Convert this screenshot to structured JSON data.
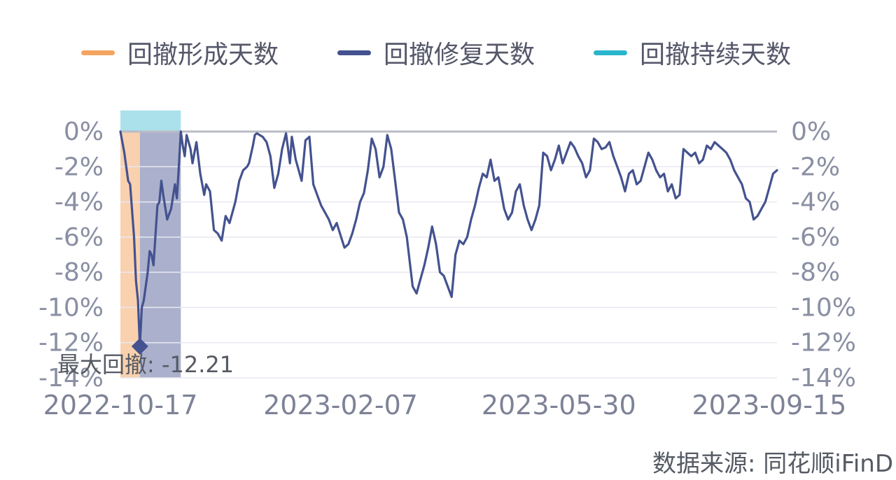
{
  "legend": {
    "formation": {
      "label": "回撤形成天数",
      "color": "#f4a460"
    },
    "repair": {
      "label": "回撤修复天数",
      "color": "#44528f"
    },
    "duration": {
      "label": "回撤持续天数",
      "color": "#2ab5cc"
    }
  },
  "source": "数据来源: 同花顺iFinD",
  "annotation": {
    "text": "最大回撤: -12.21",
    "value": -12.21,
    "date": "2022-10-27"
  },
  "chart_data": {
    "type": "line",
    "title": "",
    "y_axis": {
      "unit": "%",
      "ylim": [
        -14,
        0
      ],
      "ticks": [
        "0%",
        "-2%",
        "-4%",
        "-6%",
        "-8%",
        "-10%",
        "-12%",
        "-14%"
      ],
      "left_and_right": true
    },
    "x_axis": {
      "range": [
        "2022-10-17",
        "2023-09-19"
      ],
      "ticks": [
        "2022-10-17",
        "2023-02-07",
        "2023-05-30",
        "2023-09-15"
      ]
    },
    "grid": true,
    "legend_position": "top",
    "shaded_regions": [
      {
        "name": "回撤形成天数",
        "start": "2022-10-17",
        "end": "2022-10-27",
        "ymin": -14,
        "ymax": 0,
        "color": "#f4a460"
      },
      {
        "name": "回撤修复天数",
        "start": "2022-10-27",
        "end": "2022-11-17",
        "ymin": -14,
        "ymax": 0,
        "color": "#44528f"
      },
      {
        "name": "回撤持续天数",
        "start": "2022-10-17",
        "end": "2022-11-17",
        "ymin": 0,
        "ymax": 1.2,
        "color": "#2ab5cc"
      }
    ],
    "series": [
      {
        "color": "#44528f",
        "points": [
          [
            "2022-10-17",
            0.0
          ],
          [
            "2022-10-19",
            -1.2
          ],
          [
            "2022-10-21",
            -2.8
          ],
          [
            "2022-10-22",
            -3.0
          ],
          [
            "2022-10-24",
            -6.0
          ],
          [
            "2022-10-25",
            -8.5
          ],
          [
            "2022-10-26",
            -9.6
          ],
          [
            "2022-10-27",
            -12.21
          ],
          [
            "2022-10-28",
            -10.0
          ],
          [
            "2022-10-29",
            -9.6
          ],
          [
            "2022-10-31",
            -8.0
          ],
          [
            "2022-11-01",
            -6.8
          ],
          [
            "2022-11-02",
            -7.0
          ],
          [
            "2022-11-03",
            -7.6
          ],
          [
            "2022-11-05",
            -4.2
          ],
          [
            "2022-11-06",
            -4.0
          ],
          [
            "2022-11-07",
            -2.8
          ],
          [
            "2022-11-08",
            -3.6
          ],
          [
            "2022-11-10",
            -5.0
          ],
          [
            "2022-11-12",
            -4.4
          ],
          [
            "2022-11-14",
            -3.0
          ],
          [
            "2022-11-15",
            -3.8
          ],
          [
            "2022-11-16",
            -2.0
          ],
          [
            "2022-11-17",
            0.0
          ],
          [
            "2022-11-18",
            -0.8
          ],
          [
            "2022-11-19",
            -1.4
          ],
          [
            "2022-11-20",
            -0.2
          ],
          [
            "2022-11-22",
            -1.0
          ],
          [
            "2022-11-23",
            -1.8
          ],
          [
            "2022-11-25",
            -0.6
          ],
          [
            "2022-11-27",
            -2.4
          ],
          [
            "2022-11-29",
            -3.6
          ],
          [
            "2022-11-30",
            -3.0
          ],
          [
            "2022-12-02",
            -3.4
          ],
          [
            "2022-12-04",
            -5.6
          ],
          [
            "2022-12-06",
            -5.8
          ],
          [
            "2022-12-08",
            -6.2
          ],
          [
            "2022-12-10",
            -4.8
          ],
          [
            "2022-12-12",
            -5.2
          ],
          [
            "2022-12-15",
            -4.0
          ],
          [
            "2022-12-17",
            -2.8
          ],
          [
            "2022-12-19",
            -2.2
          ],
          [
            "2022-12-21",
            -2.0
          ],
          [
            "2022-12-22",
            -1.8
          ],
          [
            "2022-12-24",
            -0.8
          ],
          [
            "2022-12-25",
            -0.2
          ],
          [
            "2022-12-26",
            -0.1
          ],
          [
            "2022-12-29",
            -0.3
          ],
          [
            "2022-12-31",
            -0.6
          ],
          [
            "2023-01-02",
            -1.4
          ],
          [
            "2023-01-04",
            -3.2
          ],
          [
            "2023-01-06",
            -2.4
          ],
          [
            "2023-01-08",
            -1.0
          ],
          [
            "2023-01-10",
            -0.1
          ],
          [
            "2023-01-12",
            -1.8
          ],
          [
            "2023-01-13",
            -0.3
          ],
          [
            "2023-01-15",
            -1.6
          ],
          [
            "2023-01-18",
            -2.8
          ],
          [
            "2023-01-20",
            -0.5
          ],
          [
            "2023-01-22",
            -0.3
          ],
          [
            "2023-01-24",
            -3.0
          ],
          [
            "2023-01-26",
            -3.6
          ],
          [
            "2023-01-28",
            -4.2
          ],
          [
            "2023-01-30",
            -4.6
          ],
          [
            "2023-02-01",
            -5.0
          ],
          [
            "2023-02-03",
            -5.6
          ],
          [
            "2023-02-05",
            -5.2
          ],
          [
            "2023-02-07",
            -5.9
          ],
          [
            "2023-02-09",
            -6.6
          ],
          [
            "2023-02-11",
            -6.4
          ],
          [
            "2023-02-13",
            -5.8
          ],
          [
            "2023-02-15",
            -5.0
          ],
          [
            "2023-02-17",
            -4.0
          ],
          [
            "2023-02-19",
            -3.5
          ],
          [
            "2023-02-21",
            -2.2
          ],
          [
            "2023-02-23",
            -0.4
          ],
          [
            "2023-02-25",
            -1.0
          ],
          [
            "2023-02-27",
            -2.6
          ],
          [
            "2023-03-01",
            -2.0
          ],
          [
            "2023-03-03",
            -0.2
          ],
          [
            "2023-03-05",
            -1.0
          ],
          [
            "2023-03-07",
            -2.8
          ],
          [
            "2023-03-09",
            -4.6
          ],
          [
            "2023-03-11",
            -5.0
          ],
          [
            "2023-03-13",
            -6.0
          ],
          [
            "2023-03-16",
            -8.8
          ],
          [
            "2023-03-18",
            -9.2
          ],
          [
            "2023-03-20",
            -8.4
          ],
          [
            "2023-03-22",
            -7.6
          ],
          [
            "2023-03-24",
            -6.6
          ],
          [
            "2023-03-26",
            -5.4
          ],
          [
            "2023-03-28",
            -6.4
          ],
          [
            "2023-03-30",
            -8.0
          ],
          [
            "2023-04-01",
            -8.2
          ],
          [
            "2023-04-03",
            -8.8
          ],
          [
            "2023-04-05",
            -9.4
          ],
          [
            "2023-04-07",
            -7.0
          ],
          [
            "2023-04-09",
            -6.2
          ],
          [
            "2023-04-11",
            -6.4
          ],
          [
            "2023-04-13",
            -6.0
          ],
          [
            "2023-04-15",
            -5.0
          ],
          [
            "2023-04-17",
            -4.2
          ],
          [
            "2023-04-19",
            -3.2
          ],
          [
            "2023-04-21",
            -2.4
          ],
          [
            "2023-04-23",
            -2.6
          ],
          [
            "2023-04-25",
            -1.6
          ],
          [
            "2023-04-27",
            -2.8
          ],
          [
            "2023-04-29",
            -2.6
          ],
          [
            "2023-05-02",
            -4.4
          ],
          [
            "2023-05-04",
            -5.0
          ],
          [
            "2023-05-06",
            -4.6
          ],
          [
            "2023-05-08",
            -3.4
          ],
          [
            "2023-05-10",
            -3.0
          ],
          [
            "2023-05-12",
            -4.2
          ],
          [
            "2023-05-14",
            -5.0
          ],
          [
            "2023-05-16",
            -5.6
          ],
          [
            "2023-05-18",
            -5.0
          ],
          [
            "2023-05-20",
            -4.2
          ],
          [
            "2023-05-22",
            -1.2
          ],
          [
            "2023-05-24",
            -1.4
          ],
          [
            "2023-05-26",
            -2.2
          ],
          [
            "2023-05-28",
            -1.6
          ],
          [
            "2023-05-30",
            -0.8
          ],
          [
            "2023-06-01",
            -1.8
          ],
          [
            "2023-06-03",
            -1.2
          ],
          [
            "2023-06-05",
            -0.6
          ],
          [
            "2023-06-07",
            -0.9
          ],
          [
            "2023-06-09",
            -1.4
          ],
          [
            "2023-06-11",
            -1.8
          ],
          [
            "2023-06-13",
            -2.6
          ],
          [
            "2023-06-15",
            -2.2
          ],
          [
            "2023-06-17",
            -0.4
          ],
          [
            "2023-06-19",
            -0.6
          ],
          [
            "2023-06-21",
            -1.0
          ],
          [
            "2023-06-23",
            -0.9
          ],
          [
            "2023-06-25",
            -0.6
          ],
          [
            "2023-06-27",
            -1.4
          ],
          [
            "2023-06-29",
            -2.0
          ],
          [
            "2023-07-01",
            -2.6
          ],
          [
            "2023-07-03",
            -3.4
          ],
          [
            "2023-07-05",
            -2.4
          ],
          [
            "2023-07-07",
            -2.2
          ],
          [
            "2023-07-09",
            -3.0
          ],
          [
            "2023-07-11",
            -2.8
          ],
          [
            "2023-07-13",
            -2.0
          ],
          [
            "2023-07-15",
            -1.2
          ],
          [
            "2023-07-17",
            -1.6
          ],
          [
            "2023-07-19",
            -2.2
          ],
          [
            "2023-07-21",
            -2.6
          ],
          [
            "2023-07-23",
            -2.4
          ],
          [
            "2023-07-25",
            -3.4
          ],
          [
            "2023-07-27",
            -3.0
          ],
          [
            "2023-07-29",
            -3.8
          ],
          [
            "2023-07-31",
            -3.6
          ],
          [
            "2023-08-02",
            -1.0
          ],
          [
            "2023-08-04",
            -1.2
          ],
          [
            "2023-08-06",
            -1.4
          ],
          [
            "2023-08-08",
            -1.2
          ],
          [
            "2023-08-10",
            -1.8
          ],
          [
            "2023-08-12",
            -1.6
          ],
          [
            "2023-08-14",
            -0.8
          ],
          [
            "2023-08-16",
            -1.0
          ],
          [
            "2023-08-18",
            -0.6
          ],
          [
            "2023-08-20",
            -0.8
          ],
          [
            "2023-08-22",
            -1.0
          ],
          [
            "2023-08-24",
            -1.2
          ],
          [
            "2023-08-26",
            -1.6
          ],
          [
            "2023-08-28",
            -2.2
          ],
          [
            "2023-08-30",
            -2.6
          ],
          [
            "2023-09-01",
            -3.0
          ],
          [
            "2023-09-03",
            -3.8
          ],
          [
            "2023-09-05",
            -4.0
          ],
          [
            "2023-09-07",
            -5.0
          ],
          [
            "2023-09-09",
            -4.8
          ],
          [
            "2023-09-11",
            -4.4
          ],
          [
            "2023-09-13",
            -4.0
          ],
          [
            "2023-09-15",
            -3.2
          ],
          [
            "2023-09-17",
            -2.4
          ],
          [
            "2023-09-19",
            -2.2
          ]
        ]
      }
    ]
  }
}
